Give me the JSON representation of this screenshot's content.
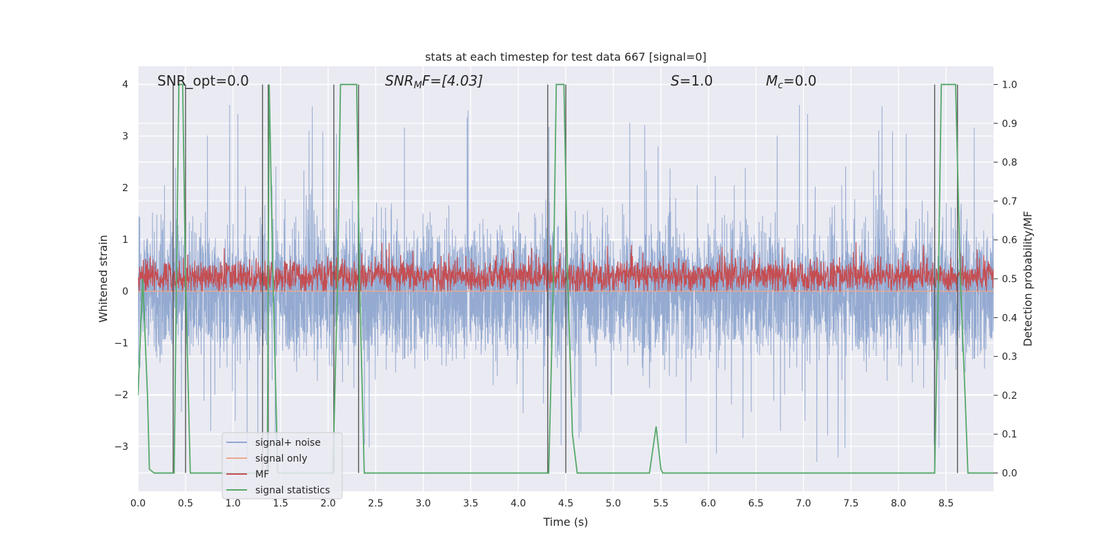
{
  "chart_data": {
    "type": "line",
    "title": "stats at each timestep for test data 667 [signal=0]",
    "xlabel": "Time (s)",
    "ylabel_left": "Whitened strain",
    "ylabel_right": "Detection probability/MF",
    "xlim": [
      0.0,
      9.0
    ],
    "ylim_left": [
      -3.87,
      4.35
    ],
    "ylim_right": [
      -0.047,
      1.047
    ],
    "xticks": [
      "0.0",
      "0.5",
      "1.0",
      "1.5",
      "2.0",
      "2.5",
      "3.0",
      "3.5",
      "4.0",
      "4.5",
      "5.0",
      "5.5",
      "6.0",
      "6.5",
      "7.0",
      "7.5",
      "8.0",
      "8.5"
    ],
    "yticks_left": [
      "−3",
      "−2",
      "−1",
      "0",
      "1",
      "2",
      "3",
      "4"
    ],
    "yticks_right": [
      "0.0",
      "0.1",
      "0.2",
      "0.3",
      "0.4",
      "0.5",
      "0.6",
      "0.7",
      "0.8",
      "0.9",
      "1.0"
    ],
    "grid": true,
    "legend_placement": "lower-left",
    "annotations": {
      "snr_opt": "SNR_opt=0.0",
      "snr_mf_main": "SNR",
      "snr_mf_sub": "M",
      "snr_mf_tail": "F=[4.03]",
      "s_main": "S",
      "s_tail": "=1.0",
      "mc_main": "M",
      "mc_sub": "c",
      "mc_tail": "=0.0"
    },
    "series": [
      {
        "name": "signal+ noise",
        "color": "#8fa6cf",
        "axis": "left",
        "summary": {
          "typical_range": [
            -1.3,
            1.3
          ],
          "peak_range": [
            -3.3,
            3.9
          ]
        }
      },
      {
        "name": "signal only",
        "color": "#eea88a",
        "axis": "left",
        "summary": {
          "constant": 0.0
        }
      },
      {
        "name": "MF",
        "color": "#c44e52",
        "axis": "left",
        "summary": {
          "typical_range": [
            0.0,
            0.7
          ],
          "peak": 0.95
        }
      },
      {
        "name": "signal statistics",
        "color": "#55a868",
        "axis": "right",
        "x": [
          0.0,
          0.05,
          0.1,
          0.12,
          0.17,
          0.38,
          0.43,
          0.47,
          0.5,
          0.55,
          1.36,
          1.38,
          1.42,
          1.47,
          2.05,
          2.1,
          2.13,
          2.3,
          2.33,
          2.38,
          4.32,
          4.37,
          4.4,
          4.48,
          4.52,
          4.57,
          4.62,
          5.38,
          5.45,
          5.5,
          5.52,
          8.38,
          8.42,
          8.45,
          8.6,
          8.65,
          8.7,
          8.73,
          9.0
        ],
        "y": [
          0.2,
          0.5,
          0.2,
          0.01,
          0.0,
          0.0,
          1.0,
          1.0,
          0.5,
          0.0,
          0.0,
          1.0,
          0.5,
          0.0,
          0.0,
          0.5,
          1.0,
          1.0,
          0.5,
          0.0,
          0.0,
          0.5,
          1.0,
          1.0,
          0.5,
          0.1,
          0.0,
          0.0,
          0.12,
          0.01,
          0.0,
          0.0,
          0.5,
          1.0,
          1.0,
          0.5,
          0.2,
          0.0,
          0.0
        ]
      }
    ],
    "vertical_markers": {
      "color": "#555555",
      "x": [
        0.37,
        0.5,
        1.31,
        1.37,
        2.06,
        2.32,
        4.31,
        4.5,
        8.38,
        8.62
      ]
    }
  }
}
